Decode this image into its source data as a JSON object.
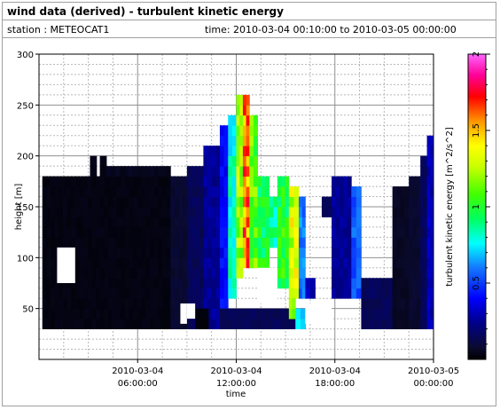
{
  "header": {
    "title": "wind data (derived) - turbulent kinetic energy",
    "station_label": "station : METEOCAT1",
    "time_label": "time: 2010-03-04 00:10:00 to 2010-03-05 00:00:00"
  },
  "chart_data": {
    "type": "heatmap",
    "xlabel": "time",
    "ylabel": "height [m]",
    "colorbar_label": "turbulent kinetic energy [m^2/s^2]",
    "x_unit": "hours since 2010-03-04 00:00",
    "xlim": [
      0,
      24
    ],
    "ylim": [
      0,
      300
    ],
    "zlim": [
      0,
      2
    ],
    "x_ticks": [
      {
        "value": 6,
        "date": "2010-03-04",
        "time": "06:00:00"
      },
      {
        "value": 12,
        "date": "2010-03-04",
        "time": "12:00:00"
      },
      {
        "value": 18,
        "date": "2010-03-04",
        "time": "18:00:00"
      },
      {
        "value": 24,
        "date": "2010-03-05",
        "time": "00:00:00"
      }
    ],
    "y_ticks": [
      "50",
      "100",
      "150",
      "200",
      "250",
      "300"
    ],
    "colorbar_ticks": [
      "0.5",
      "1",
      "1.5",
      "2"
    ],
    "grid": true,
    "height_levels": [
      35,
      45,
      55,
      65,
      75,
      85,
      95,
      105,
      115,
      125,
      135,
      145,
      155,
      165,
      175,
      185,
      195,
      205,
      215,
      225,
      235,
      245,
      255,
      265
    ],
    "columns": [
      {
        "t": [
          0.2,
          8.0
        ],
        "h": [
          35,
          185
        ],
        "v": 0.03
      },
      {
        "t": [
          3.1,
          3.5
        ],
        "h": [
          185,
          205
        ],
        "v": 0.04
      },
      {
        "t": [
          3.7,
          4.1
        ],
        "h": [
          185,
          205
        ],
        "v": 0.04
      },
      {
        "t": [
          4.1,
          6.2
        ],
        "h": [
          185,
          195
        ],
        "v": 0.05
      },
      {
        "t": [
          6.2,
          8.0
        ],
        "h": [
          185,
          190
        ],
        "v": 0.05
      },
      {
        "t": [
          8.0,
          9.0
        ],
        "h": [
          35,
          185
        ],
        "v": 0.08
      },
      {
        "t": [
          9.0,
          10.0
        ],
        "h": [
          35,
          195
        ],
        "v": 0.15
      },
      {
        "t": [
          10.0,
          11.0
        ],
        "h": [
          35,
          215
        ],
        "v": 0.25
      },
      {
        "t": [
          11.0,
          11.5
        ],
        "h": [
          35,
          230
        ],
        "v": 0.4
      },
      {
        "t": [
          11.5,
          12.0
        ],
        "h": [
          60,
          245
        ],
        "v": 0.8
      },
      {
        "t": [
          12.0,
          12.4
        ],
        "h": [
          80,
          265
        ],
        "v": 1.2
      },
      {
        "t": [
          12.4,
          12.8
        ],
        "h": [
          90,
          265
        ],
        "v": 1.6
      },
      {
        "t": [
          12.8,
          13.3
        ],
        "h": [
          90,
          245
        ],
        "v": 1.1
      },
      {
        "t": [
          13.3,
          14.0
        ],
        "h": [
          90,
          185
        ],
        "v": 0.95
      },
      {
        "t": [
          14.0,
          14.5
        ],
        "h": [
          110,
          165
        ],
        "v": 0.85
      },
      {
        "t": [
          14.5,
          15.2
        ],
        "h": [
          70,
          185
        ],
        "v": 1.0
      },
      {
        "t": [
          15.2,
          15.8
        ],
        "h": [
          60,
          175
        ],
        "v": 1.3
      },
      {
        "t": [
          15.8,
          16.2
        ],
        "h": [
          60,
          165
        ],
        "v": 0.6
      },
      {
        "t": [
          16.2,
          16.8
        ],
        "h": [
          60,
          85
        ],
        "v": 0.3
      },
      {
        "t": [
          17.2,
          17.8
        ],
        "h": [
          140,
          165
        ],
        "v": 0.15
      },
      {
        "t": [
          17.8,
          19.0
        ],
        "h": [
          60,
          185
        ],
        "v": 0.25
      },
      {
        "t": [
          19.0,
          19.6
        ],
        "h": [
          60,
          175
        ],
        "v": 0.55
      },
      {
        "t": [
          19.6,
          21.5
        ],
        "h": [
          35,
          80
        ],
        "v": 0.15
      },
      {
        "t": [
          21.5,
          22.5
        ],
        "h": [
          35,
          175
        ],
        "v": 0.06
      },
      {
        "t": [
          22.5,
          23.2
        ],
        "h": [
          35,
          185
        ],
        "v": 0.08
      },
      {
        "t": [
          23.2,
          23.6
        ],
        "h": [
          35,
          205
        ],
        "v": 0.15
      },
      {
        "t": [
          23.6,
          24.0
        ],
        "h": [
          35,
          225
        ],
        "v": 0.3
      },
      {
        "t": [
          9.5,
          10.3
        ],
        "h": [
          35,
          55
        ],
        "v": 0.02
      },
      {
        "t": [
          11.0,
          16.2
        ],
        "h": [
          35,
          55
        ],
        "v": 0.15
      },
      {
        "t": [
          15.2,
          15.6
        ],
        "h": [
          45,
          65
        ],
        "v": 1.1
      },
      {
        "t": [
          15.6,
          16.2
        ],
        "h": [
          35,
          55
        ],
        "v": 0.7
      }
    ],
    "gaps": [
      {
        "t": [
          1.1,
          2.2
        ],
        "h": [
          75,
          110
        ]
      },
      {
        "t": [
          8.6,
          9.0
        ],
        "h": [
          35,
          55
        ]
      },
      {
        "t": [
          9.0,
          9.5
        ],
        "h": [
          40,
          55
        ]
      },
      {
        "t": [
          13.3,
          14.5
        ],
        "h": [
          55,
          90
        ]
      },
      {
        "t": [
          16.2,
          17.8
        ],
        "h": [
          35,
          55
        ]
      }
    ]
  }
}
